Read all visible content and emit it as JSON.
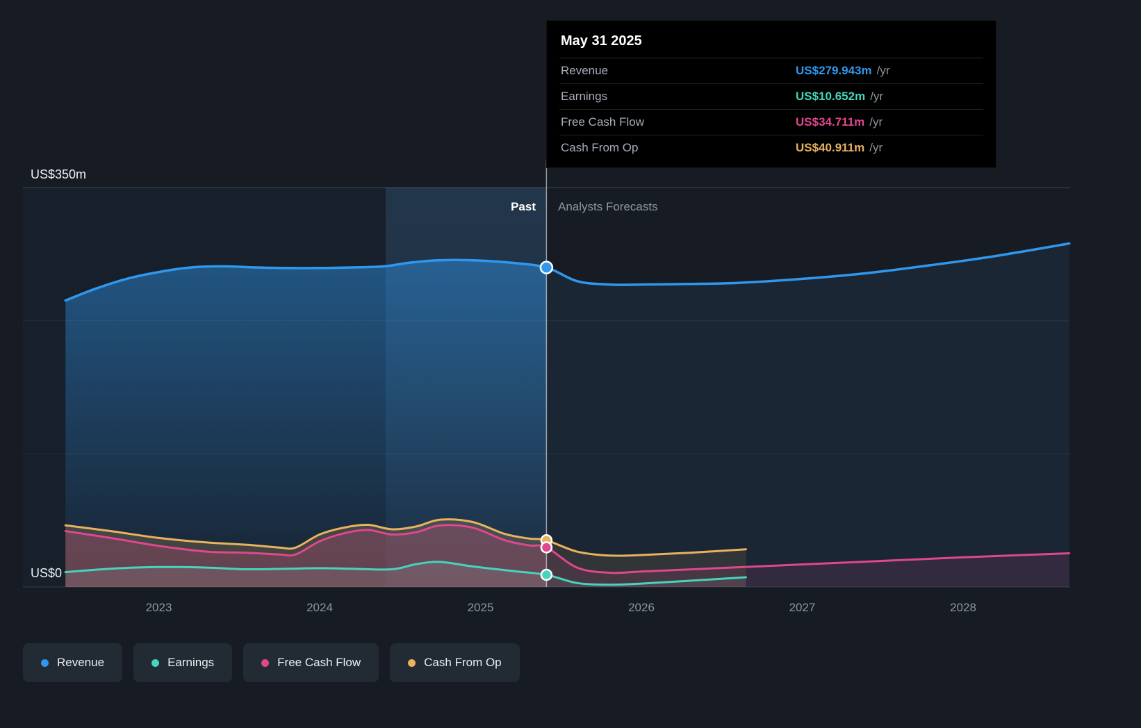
{
  "tooltip": {
    "date": "May 31 2025",
    "rows": [
      {
        "label": "Revenue",
        "value": "US$279.943m",
        "suffix": "/yr",
        "color": "#2f98ee"
      },
      {
        "label": "Earnings",
        "value": "US$10.652m",
        "suffix": "/yr",
        "color": "#45d4bd"
      },
      {
        "label": "Free Cash Flow",
        "value": "US$34.711m",
        "suffix": "/yr",
        "color": "#e0478c"
      },
      {
        "label": "Cash From Op",
        "value": "US$40.911m",
        "suffix": "/yr",
        "color": "#e9b25e"
      }
    ]
  },
  "labels": {
    "past": "Past",
    "forecast": "Analysts Forecasts",
    "y_max": "US$350m",
    "y_min": "US$0"
  },
  "legend": [
    {
      "label": "Revenue",
      "color": "#2f98ee"
    },
    {
      "label": "Earnings",
      "color": "#45d4bd"
    },
    {
      "label": "Free Cash Flow",
      "color": "#e0478c"
    },
    {
      "label": "Cash From Op",
      "color": "#e9b25e"
    }
  ],
  "chart_data": {
    "type": "area",
    "title": "",
    "xlabel": "",
    "ylabel": "US$ (millions)",
    "ylim": [
      0,
      350
    ],
    "y_gridlines": [
      0,
      116.67,
      233.33,
      350
    ],
    "x_ticks": [
      2023,
      2024,
      2025,
      2026,
      2027,
      2028
    ],
    "divider_x": 2025.41,
    "divider_date": "May 31 2025",
    "highlight_band": [
      2024.41,
      2025.41
    ],
    "legend_position": "bottom",
    "grid": true,
    "series": [
      {
        "name": "Revenue",
        "color": "#2f98ee",
        "marker_value": 279.943,
        "x": [
          2022.42,
          2022.6,
          2022.8,
          2023.0,
          2023.2,
          2023.4,
          2023.6,
          2023.8,
          2024.0,
          2024.2,
          2024.4,
          2024.55,
          2024.7,
          2024.85,
          2025.0,
          2025.2,
          2025.41,
          2025.6,
          2025.8,
          2026.0,
          2026.3,
          2026.6,
          2027.0,
          2027.4,
          2027.8,
          2028.2,
          2028.66
        ],
        "values": [
          251,
          261,
          270,
          276,
          280,
          281,
          280,
          279.5,
          279.5,
          280,
          281,
          284,
          286,
          286.5,
          286,
          284,
          279.943,
          268,
          265,
          265,
          265.5,
          266.5,
          270,
          275,
          282,
          290,
          301
        ]
      },
      {
        "name": "Cash From Op",
        "color": "#e9b25e",
        "marker_value": 40.911,
        "x": [
          2022.42,
          2022.7,
          2023.0,
          2023.3,
          2023.55,
          2023.75,
          2023.85,
          2024.0,
          2024.15,
          2024.3,
          2024.45,
          2024.6,
          2024.75,
          2024.95,
          2025.15,
          2025.3,
          2025.41,
          2025.6,
          2025.8,
          2026.0,
          2026.3,
          2026.65
        ],
        "values": [
          54,
          49,
          43,
          39,
          37,
          34.5,
          34.5,
          46,
          52,
          54.5,
          50.5,
          53,
          59,
          57,
          46.5,
          42.5,
          40.911,
          31,
          27.5,
          28,
          30,
          33
        ]
      },
      {
        "name": "Free Cash Flow",
        "color": "#e0478c",
        "marker_value": 34.711,
        "x": [
          2022.42,
          2022.7,
          2023.0,
          2023.3,
          2023.55,
          2023.75,
          2023.85,
          2024.0,
          2024.15,
          2024.3,
          2024.45,
          2024.6,
          2024.75,
          2024.95,
          2025.15,
          2025.3,
          2025.41,
          2025.6,
          2025.8,
          2026.0,
          2026.4,
          2026.8,
          2027.2,
          2027.6,
          2028.0,
          2028.66
        ],
        "values": [
          49,
          43,
          36,
          31,
          30,
          28.5,
          28.5,
          40,
          47,
          50,
          46,
          48,
          54,
          52,
          41,
          36.5,
          34.711,
          17,
          12.5,
          13.5,
          16,
          18.5,
          21,
          23.5,
          26,
          29.5
        ]
      },
      {
        "name": "Earnings",
        "color": "#45d4bd",
        "marker_value": 10.652,
        "x": [
          2022.42,
          2022.7,
          2023.0,
          2023.3,
          2023.55,
          2023.8,
          2024.0,
          2024.2,
          2024.45,
          2024.6,
          2024.75,
          2024.95,
          2025.2,
          2025.41,
          2025.6,
          2025.8,
          2026.0,
          2026.3,
          2026.65
        ],
        "values": [
          13,
          16,
          17.5,
          17,
          15.5,
          16,
          16.5,
          16,
          15.5,
          20,
          22,
          18,
          14,
          10.652,
          3.5,
          2,
          3,
          5.5,
          8.5
        ]
      }
    ]
  }
}
